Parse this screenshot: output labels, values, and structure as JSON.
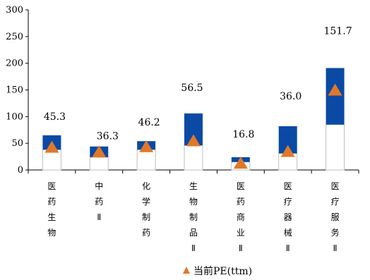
{
  "chart_data": {
    "type": "bar",
    "categories": [
      "医药生物",
      "中药Ⅱ",
      "化学制药",
      "生物制品Ⅱ",
      "医药商业Ⅱ",
      "医疗器械Ⅱ",
      "医疗服务Ⅱ"
    ],
    "category_chars": [
      [
        "医",
        "药",
        "生",
        "物"
      ],
      [
        "中",
        "药",
        "Ⅱ"
      ],
      [
        "化",
        "学",
        "制",
        "药"
      ],
      [
        "生",
        "物",
        "制",
        "品",
        "Ⅱ"
      ],
      [
        "医",
        "药",
        "商",
        "业",
        "Ⅱ"
      ],
      [
        "医",
        "疗",
        "器",
        "械",
        "Ⅱ"
      ],
      [
        "医",
        "疗",
        "服",
        "务",
        "Ⅱ"
      ]
    ],
    "range_low": [
      38,
      24,
      38,
      46,
      15,
      31,
      85
    ],
    "range_high": [
      65,
      44,
      54,
      106,
      24,
      82,
      191
    ],
    "series": [
      {
        "name": "当前PE(ttm)",
        "values": [
          45.3,
          36.3,
          46.2,
          56.5,
          16.8,
          36.0,
          151.7
        ]
      }
    ],
    "data_labels": [
      "45.3",
      "36.3",
      "46.2",
      "56.5",
      "16.8",
      "36.0",
      "151.7"
    ],
    "marker_values": [
      43,
      34,
      44,
      55,
      13,
      35,
      150
    ],
    "ylim": [
      0,
      300
    ],
    "yticks": [
      "0",
      "50",
      "100",
      "150",
      "200",
      "250",
      "300"
    ],
    "legend": {
      "label": "当前PE(ttm)",
      "position": "bottom"
    },
    "grid": false,
    "colors": {
      "range_upper": "#0a4aa5",
      "range_lower": "#ffffff",
      "range_lower_border": "#bfbfbf",
      "marker": "#e0782a",
      "axis": "#000000"
    }
  }
}
